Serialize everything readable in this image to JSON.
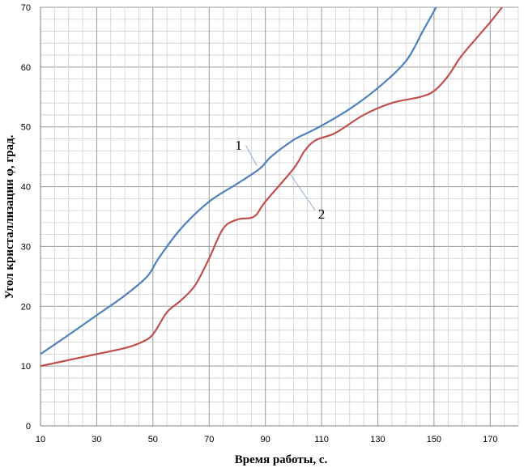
{
  "chart_data": {
    "type": "line",
    "title": "",
    "xlabel": "Время работы, с.",
    "ylabel": "Угол кристаллизации φ, град.",
    "xlim": [
      10,
      180
    ],
    "ylim": [
      0,
      70
    ],
    "x_ticks": [
      "10",
      "30",
      "50",
      "70",
      "90",
      "110",
      "130",
      "150",
      "170"
    ],
    "y_ticks": [
      "0",
      "10",
      "20",
      "30",
      "40",
      "50",
      "60",
      "70"
    ],
    "grid": true,
    "colors": {
      "series1": "#4f81bd",
      "series2": "#c0504d",
      "grid": "#b0b0b0"
    },
    "series": [
      {
        "name": "1",
        "values": [
          [
            10,
            12
          ],
          [
            20,
            15.2
          ],
          [
            30,
            18.5
          ],
          [
            40,
            21.8
          ],
          [
            48,
            25
          ],
          [
            52,
            28
          ],
          [
            60,
            33
          ],
          [
            70,
            37.5
          ],
          [
            80,
            40.5
          ],
          [
            88,
            43
          ],
          [
            92,
            45
          ],
          [
            100,
            47.8
          ],
          [
            105,
            49
          ],
          [
            110,
            50.2
          ],
          [
            120,
            53
          ],
          [
            130,
            56.5
          ],
          [
            140,
            61
          ],
          [
            146,
            66
          ],
          [
            151,
            70.2
          ]
        ]
      },
      {
        "name": "2",
        "values": [
          [
            10,
            10
          ],
          [
            20,
            11
          ],
          [
            30,
            12
          ],
          [
            40,
            13
          ],
          [
            46,
            14
          ],
          [
            50,
            15.3
          ],
          [
            55,
            19
          ],
          [
            60,
            21
          ],
          [
            65,
            23.5
          ],
          [
            70,
            28
          ],
          [
            75,
            33
          ],
          [
            80,
            34.5
          ],
          [
            86,
            35
          ],
          [
            90,
            37.5
          ],
          [
            100,
            43
          ],
          [
            104,
            46
          ],
          [
            108,
            47.8
          ],
          [
            115,
            49
          ],
          [
            125,
            52
          ],
          [
            135,
            54
          ],
          [
            145,
            55
          ],
          [
            150,
            56
          ],
          [
            155,
            58.5
          ],
          [
            160,
            62
          ],
          [
            170,
            67.5
          ],
          [
            175,
            70.5
          ]
        ]
      }
    ],
    "annotations": [
      {
        "text": "1",
        "x": 80.5,
        "y": 47,
        "target_x": 87,
        "target_y": 43.5
      },
      {
        "text": "2",
        "x": 110,
        "y": 35.5,
        "target_x": 99,
        "target_y": 42
      }
    ]
  }
}
